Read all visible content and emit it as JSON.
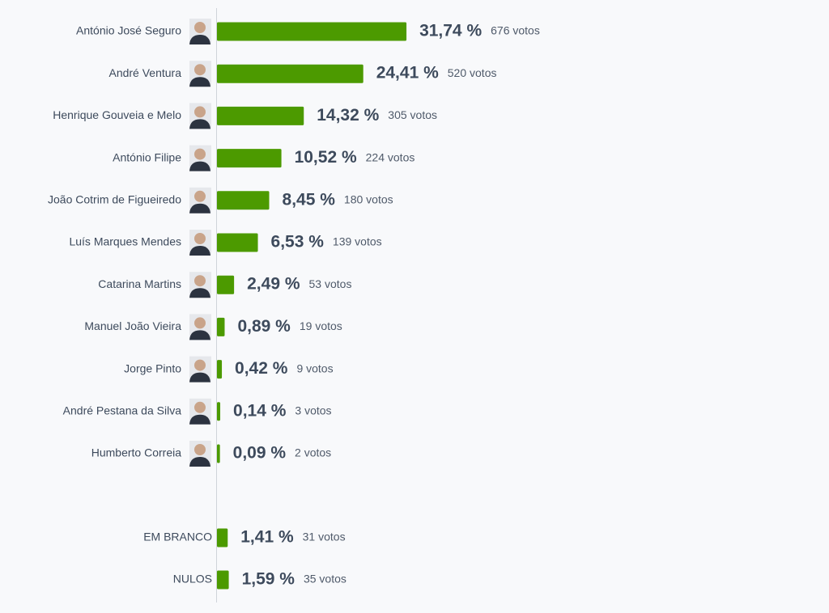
{
  "chart_data": [
    {
      "type": "bar",
      "color": "#4c9a00",
      "categories": [
        "António José Seguro",
        "André Ventura",
        "Henrique Gouveia e Melo",
        "António Filipe",
        "João Cotrim de Figueiredo",
        "Luís Marques Mendes",
        "Catarina Martins",
        "Manuel João Vieira",
        "Jorge Pinto",
        "André Pestana da Silva",
        "Humberto Correia"
      ],
      "values": [
        31.74,
        24.41,
        14.32,
        10.52,
        8.45,
        6.53,
        2.49,
        0.89,
        0.42,
        0.14,
        0.09
      ],
      "value_labels": [
        "31,74 %",
        "24,41 %",
        "14,32 %",
        "10,52 %",
        "8,45 %",
        "6,53 %",
        "2,49 %",
        "0,89 %",
        "0,42 %",
        "0,14 %",
        "0,09 %"
      ],
      "votes": {
        "values": [
          676,
          520,
          305,
          224,
          180,
          139,
          53,
          19,
          9,
          3,
          2
        ],
        "value_labels": [
          "676 votos",
          "520 votos",
          "305 votos",
          "224 votos",
          "180 votos",
          "139 votos",
          "53 votos",
          "19 votos",
          "9 votos",
          "3 votos",
          "2 votos"
        ]
      }
    },
    {
      "type": "bar",
      "color": "#4c9a00",
      "categories": [
        "EM BRANCO",
        "NULOS"
      ],
      "values": [
        1.41,
        1.59
      ],
      "value_labels": [
        "1,41 %",
        "1,59 %"
      ],
      "votes": {
        "values": [
          31,
          35
        ],
        "value_labels": [
          "31 votos",
          "35 votos"
        ]
      }
    }
  ]
}
